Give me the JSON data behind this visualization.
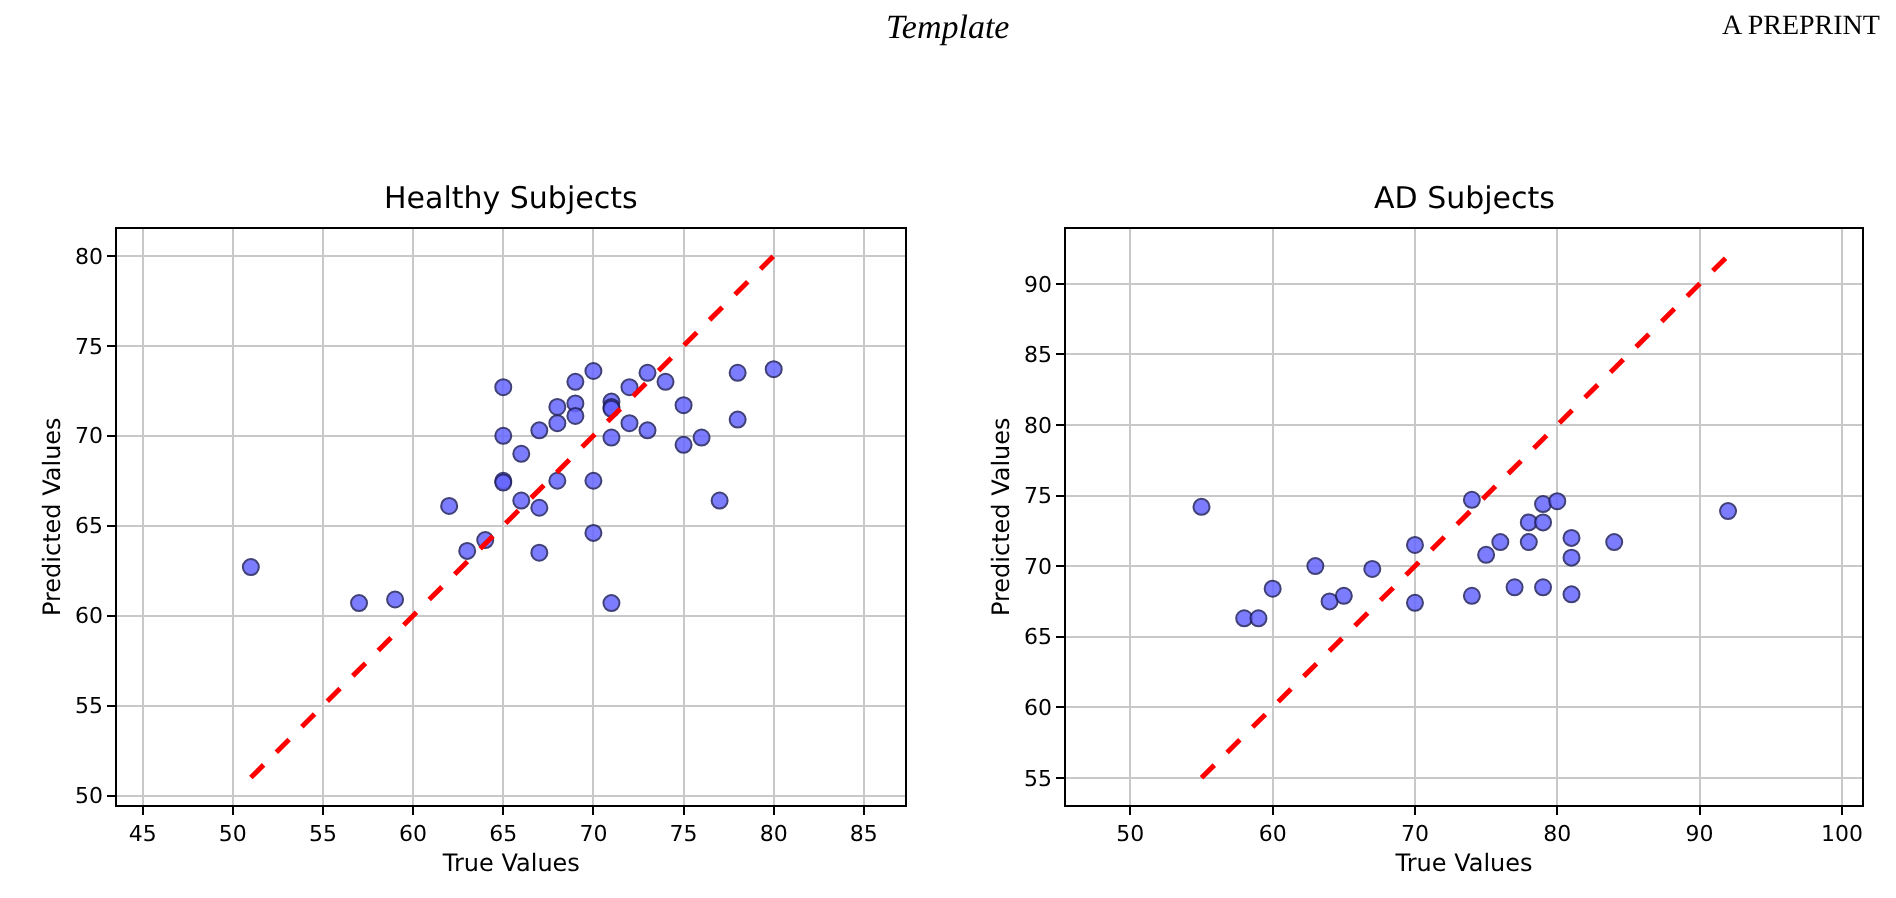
{
  "chart_data": [
    {
      "type": "scatter",
      "title": "Healthy Subjects",
      "xlabel": "True Values",
      "ylabel": "Predicted Values",
      "annotations": [
        "Template",
        "A PREPRINT"
      ],
      "xlim": [
        43.6,
        87.3
      ],
      "ylim": [
        49.5,
        81.5
      ],
      "xticks": [
        45,
        50,
        55,
        60,
        65,
        70,
        75,
        80,
        85
      ],
      "yticks": [
        50,
        55,
        60,
        65,
        70,
        75,
        80
      ],
      "grid": true,
      "series": [
        {
          "type": "scatter",
          "color": "#6666ff",
          "marker": "circle",
          "x": [
            51,
            57,
            59,
            62,
            63,
            64,
            65,
            65,
            65,
            65,
            66,
            66,
            67,
            67,
            67,
            68,
            68,
            68,
            69,
            69,
            69,
            70,
            70,
            70,
            71,
            71,
            71,
            71,
            71,
            72,
            72,
            73,
            73,
            74,
            75,
            75,
            76,
            77,
            78,
            78,
            80
          ],
          "values": [
            62.7,
            60.7,
            60.9,
            66.1,
            63.6,
            64.2,
            72.7,
            70.0,
            67.5,
            67.4,
            69.0,
            66.4,
            70.3,
            66.0,
            63.5,
            71.6,
            70.7,
            67.5,
            73.0,
            71.8,
            71.1,
            73.6,
            67.5,
            64.6,
            71.9,
            71.6,
            71.5,
            69.9,
            60.7,
            72.7,
            70.7,
            73.5,
            70.3,
            73.0,
            71.7,
            69.5,
            69.9,
            66.4,
            73.5,
            70.9,
            73.7
          ]
        },
        {
          "type": "line",
          "color": "#ff0000",
          "line_style": "dashed",
          "marker": "none",
          "x": [
            51,
            80
          ],
          "values": [
            51,
            80
          ]
        }
      ]
    },
    {
      "type": "scatter",
      "title": "AD Subjects",
      "xlabel": "True Values",
      "ylabel": "Predicted Values",
      "xlim": [
        45.5,
        101.4
      ],
      "ylim": [
        53.1,
        93.9
      ],
      "xticks": [
        50,
        60,
        70,
        80,
        90,
        100
      ],
      "yticks": [
        55,
        60,
        65,
        70,
        75,
        80,
        85,
        90
      ],
      "grid": true,
      "series": [
        {
          "type": "scatter",
          "color": "#6666ff",
          "marker": "circle",
          "x": [
            55,
            58,
            59,
            60,
            63,
            64,
            65,
            67,
            70,
            70,
            74,
            74,
            75,
            76,
            77,
            78,
            78,
            79,
            79,
            79,
            80,
            81,
            81,
            81,
            84,
            92
          ],
          "values": [
            74.2,
            66.3,
            66.3,
            68.4,
            70.0,
            67.5,
            67.9,
            69.8,
            71.5,
            67.4,
            74.7,
            67.9,
            70.8,
            71.7,
            68.5,
            73.1,
            71.7,
            74.4,
            73.1,
            68.5,
            74.6,
            72.0,
            70.6,
            68.0,
            71.7,
            73.9
          ]
        },
        {
          "type": "line",
          "color": "#ff0000",
          "line_style": "dashed",
          "marker": "none",
          "x": [
            55,
            92
          ],
          "values": [
            55,
            92
          ]
        }
      ]
    }
  ]
}
